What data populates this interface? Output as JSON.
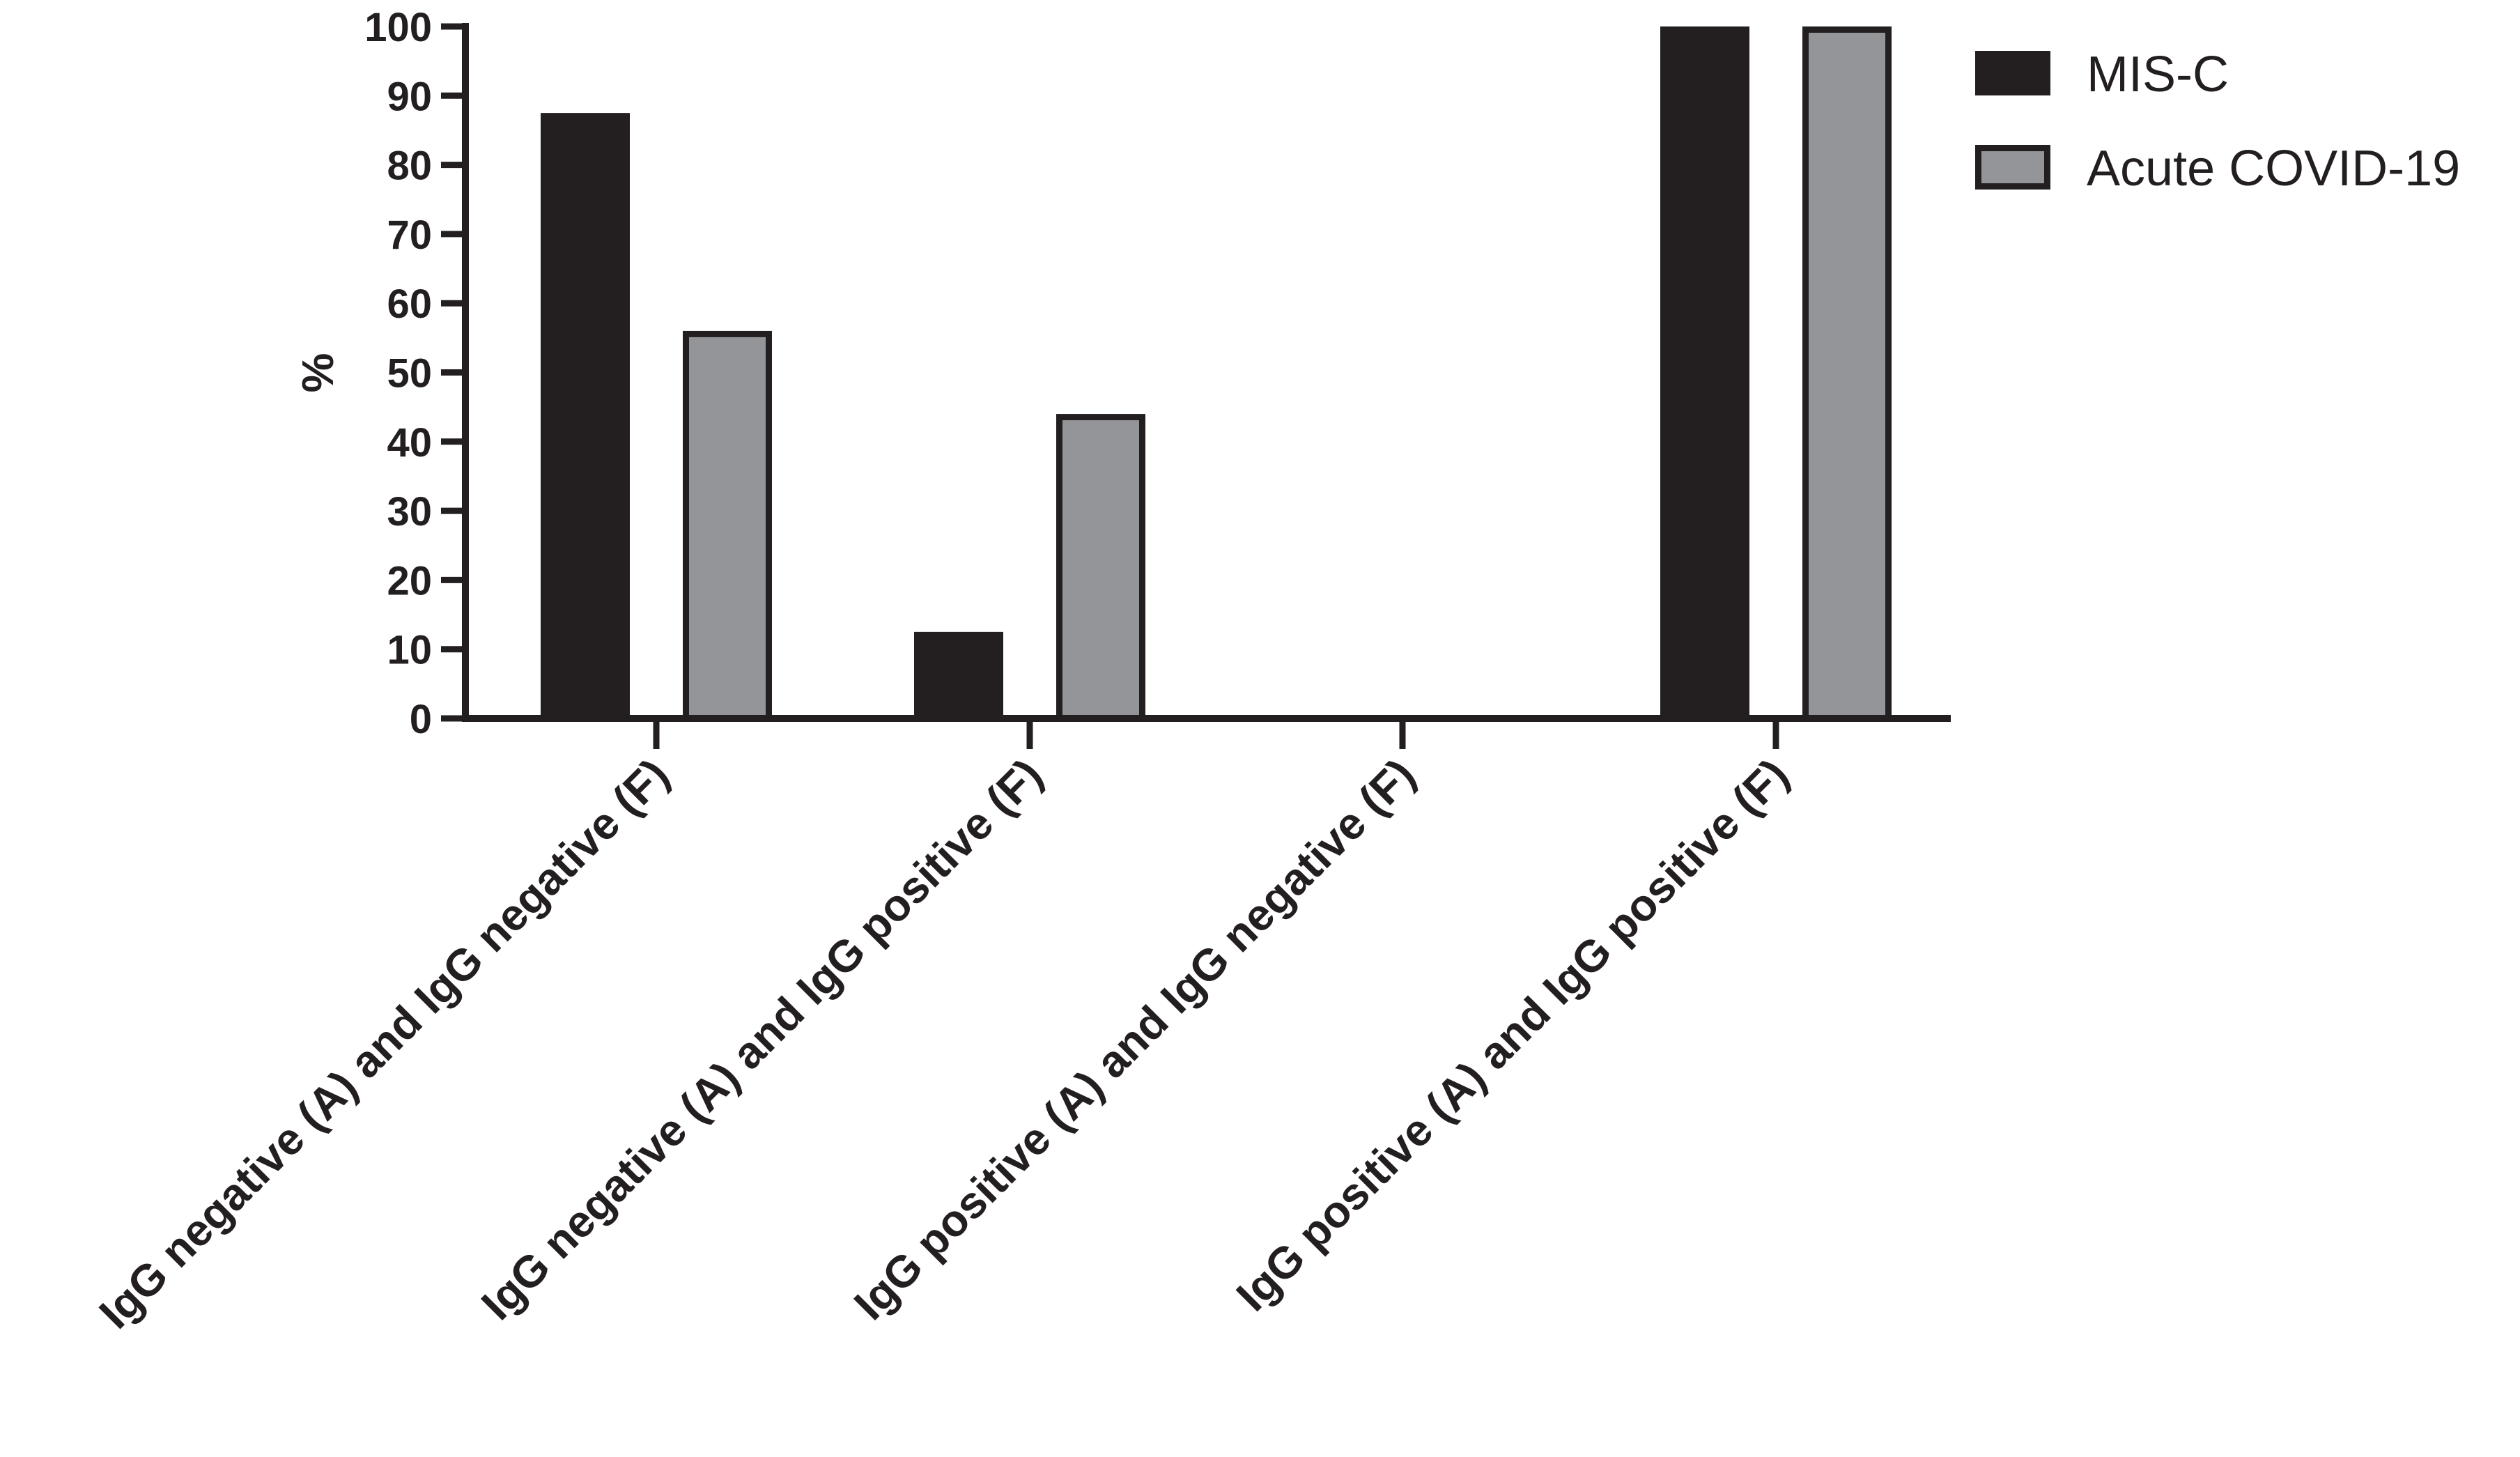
{
  "chart_data": {
    "type": "bar",
    "title": "",
    "xlabel": "",
    "ylabel": "%",
    "ylim": [
      0,
      100
    ],
    "yticks": [
      0,
      10,
      20,
      30,
      40,
      50,
      60,
      70,
      80,
      90,
      100
    ],
    "grid": false,
    "legend_position": "top-right",
    "categories": [
      "IgG negative (A) and IgG negative (F)",
      "IgG negative (A) and IgG positive (F)",
      "IgG positive (A) and IgG negative (F)",
      "IgG positive (A) and IgG positive (F)"
    ],
    "series": [
      {
        "name": "MIS-C",
        "values": [
          87.5,
          12.5,
          0,
          100
        ],
        "color": "#231f20"
      },
      {
        "name": "Acute COVID-19",
        "values": [
          56,
          44,
          0,
          100
        ],
        "color": "#939598"
      }
    ]
  }
}
